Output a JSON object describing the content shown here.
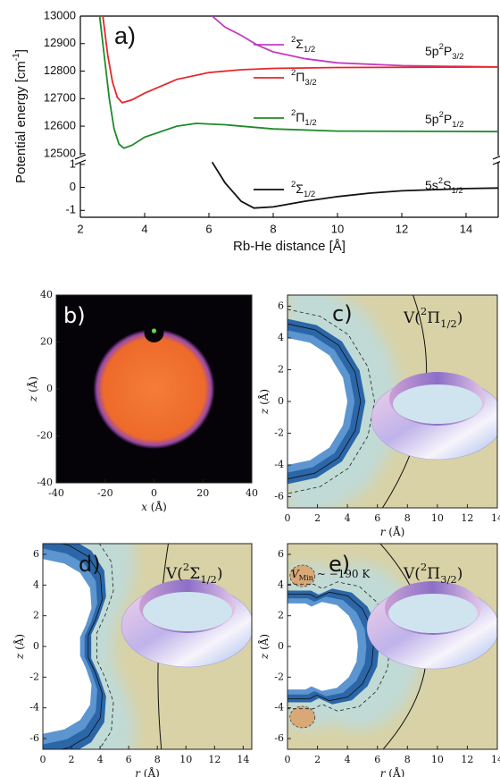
{
  "chart_data": [
    {
      "type": "line",
      "panel_label": "a)",
      "xlabel": "Rb-He distance [Å]",
      "ylabel": [
        {
          "t": "Potential energy [cm"
        },
        {
          "t": "-1",
          "sup": true
        },
        {
          "t": "]"
        }
      ],
      "xlim": [
        2,
        15
      ],
      "xticks": [
        2,
        4,
        6,
        8,
        10,
        12,
        14
      ],
      "ylim": [
        12480,
        13000
      ],
      "yticks": [
        12500,
        12600,
        12700,
        12800,
        12900,
        13000
      ],
      "lower_ylim": [
        -1.3,
        1.15
      ],
      "lower_yticks": [
        -1,
        0,
        1
      ],
      "series": [
        {
          "name": [
            {
              "t": "2",
              "sup": true
            },
            {
              "t": "Σ"
            },
            {
              "t": "1/2",
              "sub": true
            }
          ],
          "color": "#c23bc2",
          "x": [
            6.1,
            6.5,
            7,
            7.5,
            8,
            9,
            10,
            12,
            15
          ],
          "values": [
            13000,
            12960,
            12930,
            12895,
            12870,
            12845,
            12830,
            12820,
            12815
          ]
        },
        {
          "name": [
            {
              "t": "2",
              "sup": true
            },
            {
              "t": "Π"
            },
            {
              "t": "3/2",
              "sub": true
            }
          ],
          "color": "#e8262a",
          "x": [
            2.7,
            2.85,
            3,
            3.15,
            3.3,
            3.6,
            4,
            5,
            6,
            7,
            8,
            10,
            15
          ],
          "values": [
            13000,
            12860,
            12760,
            12705,
            12685,
            12695,
            12720,
            12770,
            12795,
            12805,
            12810,
            12813,
            12815
          ]
        },
        {
          "name": [
            {
              "t": "2",
              "sup": true
            },
            {
              "t": "Π"
            },
            {
              "t": "1/2",
              "sub": true
            }
          ],
          "color": "#1f8a2a",
          "x": [
            2.6,
            2.75,
            2.9,
            3.05,
            3.2,
            3.35,
            3.6,
            4,
            5,
            5.6,
            6.5,
            8,
            10,
            15
          ],
          "values": [
            13000,
            12850,
            12700,
            12590,
            12535,
            12520,
            12530,
            12560,
            12600,
            12610,
            12605,
            12590,
            12582,
            12580
          ]
        },
        {
          "name": [
            {
              "t": "2",
              "sup": true
            },
            {
              "t": "Σ"
            },
            {
              "t": "1/2",
              "sub": true
            }
          ],
          "color": "#111111",
          "axis": "lower",
          "x": [
            6.1,
            6.5,
            7,
            7.4,
            8,
            9,
            10,
            11,
            12,
            14,
            15
          ],
          "values": [
            1.1,
            0.2,
            -0.6,
            -0.9,
            -0.85,
            -0.6,
            -0.4,
            -0.25,
            -0.15,
            -0.05,
            -0.03
          ]
        }
      ],
      "annotations": [
        [
          {
            "t": "5p"
          },
          {
            "t": "2",
            "sup": true
          },
          {
            "t": "P"
          },
          {
            "t": "3/2",
            "sub": true
          }
        ],
        [
          {
            "t": "5p"
          },
          {
            "t": "2",
            "sup": true
          },
          {
            "t": "P"
          },
          {
            "t": "1/2",
            "sub": true
          }
        ],
        [
          {
            "t": "5s"
          },
          {
            "t": "2",
            "sup": true
          },
          {
            "t": "S"
          },
          {
            "t": "1/2",
            "sub": true
          }
        ]
      ]
    },
    {
      "type": "image",
      "panel_label": "b)",
      "xlabel": [
        {
          "t": "x",
          "i": true
        },
        {
          "t": " (Å)"
        }
      ],
      "ylabel": [
        {
          "t": "z",
          "i": true
        },
        {
          "t": " (Å)"
        }
      ],
      "xlim": [
        -40,
        40
      ],
      "xticks": [
        -40,
        -20,
        0,
        20,
        40
      ],
      "ylim": [
        -40,
        40
      ],
      "yticks": [
        -40,
        -20,
        0,
        20,
        40
      ]
    },
    {
      "type": "contour",
      "panel_label": "c)",
      "potential": [
        {
          "t": "V("
        },
        {
          "t": "2",
          "sup": true
        },
        {
          "t": "Π"
        },
        {
          "t": "1/2",
          "sub": true
        },
        {
          "t": ")"
        }
      ],
      "xlabel": [
        {
          "t": "r",
          "i": true
        },
        {
          "t": " (Å)"
        }
      ],
      "ylabel": [
        {
          "t": "z",
          "i": true
        },
        {
          "t": " (Å)"
        }
      ],
      "xlim": [
        0,
        14
      ],
      "xticks": [
        0,
        2,
        4,
        6,
        8,
        10,
        12,
        14
      ],
      "ylim": [
        -6.7,
        6.7
      ],
      "yticks": [
        -6,
        -4,
        -2,
        0,
        2,
        4,
        6
      ]
    },
    {
      "type": "contour",
      "panel_label": "d)",
      "potential": [
        {
          "t": "V("
        },
        {
          "t": "2",
          "sup": true
        },
        {
          "t": "Σ"
        },
        {
          "t": "1/2",
          "sub": true
        },
        {
          "t": ")"
        }
      ],
      "xlabel": [
        {
          "t": "r",
          "i": true
        },
        {
          "t": " (Å)"
        }
      ],
      "ylabel": [
        {
          "t": "z",
          "i": true
        },
        {
          "t": " (Å)"
        }
      ],
      "xlim": [
        0,
        14.6
      ],
      "xticks": [
        0,
        2,
        4,
        6,
        8,
        10,
        12,
        14
      ],
      "ylim": [
        -6.7,
        6.7
      ],
      "yticks": [
        -6,
        -4,
        -2,
        0,
        2,
        4,
        6
      ]
    },
    {
      "type": "contour",
      "panel_label": "e)",
      "potential": [
        {
          "t": "V("
        },
        {
          "t": "2",
          "sup": true
        },
        {
          "t": "Π"
        },
        {
          "t": "3/2",
          "sub": true
        },
        {
          "t": ")"
        }
      ],
      "annotation": [
        {
          "t": "V",
          "i": true
        },
        {
          "t": "Min",
          "sub": true
        },
        {
          "t": " ~ −190 K"
        }
      ],
      "xlabel": [
        {
          "t": "r",
          "i": true
        },
        {
          "t": " (Å)"
        }
      ],
      "ylabel": [
        {
          "t": "z",
          "i": true
        },
        {
          "t": " (Å)"
        }
      ],
      "xlim": [
        0,
        14
      ],
      "xticks": [
        0,
        2,
        4,
        6,
        8,
        10,
        12,
        14
      ],
      "ylim": [
        -6.7,
        6.7
      ],
      "yticks": [
        -6,
        -4,
        -2,
        0,
        2,
        4,
        6
      ]
    }
  ]
}
